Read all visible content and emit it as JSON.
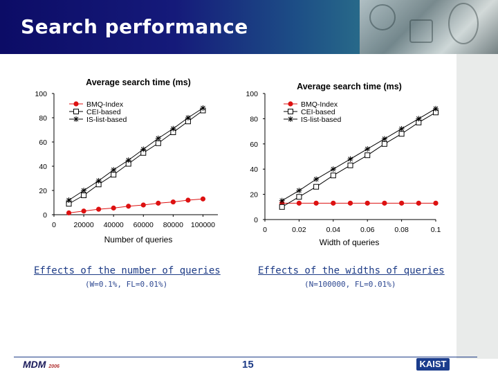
{
  "slide": {
    "title": "Search performance",
    "page_number": "15",
    "logo_left": "MDM",
    "logo_left_year": "2006",
    "logo_right": "KAIST"
  },
  "captions": [
    {
      "title": "Effects of the number of queries",
      "params": "(W=0.1%, FL=0.01%)"
    },
    {
      "title": "Effects of the widths of queries",
      "params": "(N=100000, FL=0.01%)"
    }
  ],
  "colors": {
    "bmq": "#dd1111",
    "cei": "#000000",
    "is": "#000000",
    "caption": "#1d3b86"
  },
  "chart_data": [
    {
      "type": "line",
      "title": "Average search time (ms)",
      "xlabel": "Number of queries",
      "ylabel": "",
      "xlim": [
        0,
        110000
      ],
      "ylim": [
        0,
        100
      ],
      "xticks": [
        0,
        20000,
        40000,
        60000,
        80000,
        100000
      ],
      "xtick_labels": [
        "0",
        "20000",
        "40000",
        "60000",
        "80000",
        "100000"
      ],
      "yticks": [
        0,
        20,
        40,
        60,
        80,
        100
      ],
      "ytick_labels": [
        "0",
        "20",
        "40",
        "60",
        "80",
        "100"
      ],
      "legend_position": "top-left",
      "x": [
        10000,
        20000,
        30000,
        40000,
        50000,
        60000,
        70000,
        80000,
        90000,
        100000
      ],
      "series": [
        {
          "name": "BMQ-Index",
          "marker": "dot",
          "values": [
            1.5,
            3,
            4.5,
            5.5,
            7,
            8,
            9.5,
            10.5,
            12,
            13
          ]
        },
        {
          "name": "CEI-based",
          "marker": "square",
          "values": [
            9,
            16,
            25,
            33,
            42,
            51,
            59,
            68,
            77,
            86
          ]
        },
        {
          "name": "IS-list-based",
          "marker": "asterisk",
          "values": [
            12,
            20,
            28,
            37,
            45,
            54,
            63,
            71,
            80,
            88
          ]
        }
      ]
    },
    {
      "type": "line",
      "title": "Average search time (ms)",
      "xlabel": "Width of queries",
      "ylabel": "",
      "xlim": [
        0,
        0.1
      ],
      "ylim": [
        0,
        100
      ],
      "xticks": [
        0,
        0.02,
        0.04,
        0.06,
        0.08,
        0.1
      ],
      "xtick_labels": [
        "0",
        "0.02",
        "0.04",
        "0.06",
        "0.08",
        "0.1"
      ],
      "yticks": [
        0,
        20,
        40,
        60,
        80,
        100
      ],
      "ytick_labels": [
        "0",
        "20",
        "40",
        "60",
        "80",
        "100"
      ],
      "legend_position": "top-left",
      "x": [
        0.01,
        0.02,
        0.03,
        0.04,
        0.05,
        0.06,
        0.07,
        0.08,
        0.09,
        0.1
      ],
      "series": [
        {
          "name": "BMQ-Index",
          "marker": "dot",
          "values": [
            13,
            13,
            13,
            13,
            13,
            13,
            13,
            13,
            13,
            13
          ]
        },
        {
          "name": "CEI-based",
          "marker": "square",
          "values": [
            10,
            18,
            26,
            35,
            43,
            51,
            60,
            68,
            77,
            85
          ]
        },
        {
          "name": "IS-list-based",
          "marker": "asterisk",
          "values": [
            15,
            23,
            32,
            40,
            48,
            56,
            64,
            72,
            80,
            88
          ]
        }
      ]
    }
  ]
}
